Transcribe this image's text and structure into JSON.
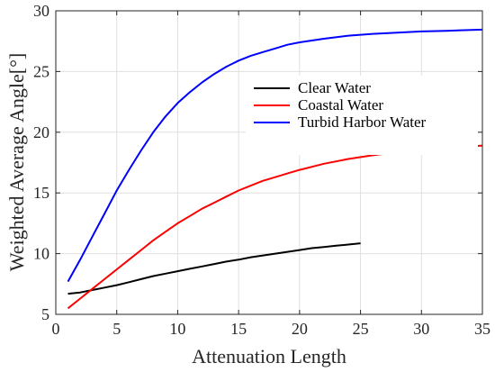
{
  "chart_data": {
    "type": "line",
    "xlabel": "Attenuation Length",
    "ylabel": "Weighted Average Angle[°]",
    "xlim": [
      0,
      35
    ],
    "ylim": [
      5,
      30
    ],
    "xticks": [
      0,
      5,
      10,
      15,
      20,
      25,
      30,
      35
    ],
    "yticks": [
      5,
      10,
      15,
      20,
      25,
      30
    ],
    "grid": true,
    "legend_position": "top-right",
    "series": [
      {
        "name": "Clear Water",
        "color": "#000000",
        "x": [
          1,
          2,
          3,
          4,
          5,
          6,
          7,
          8,
          9,
          10,
          11,
          12,
          13,
          14,
          15,
          16,
          17,
          18,
          19,
          20,
          21,
          22,
          23,
          24,
          25
        ],
        "y": [
          6.7,
          6.8,
          7.0,
          7.2,
          7.4,
          7.65,
          7.9,
          8.15,
          8.35,
          8.55,
          8.75,
          8.95,
          9.15,
          9.35,
          9.5,
          9.7,
          9.85,
          10.0,
          10.15,
          10.3,
          10.45,
          10.55,
          10.65,
          10.75,
          10.85
        ]
      },
      {
        "name": "Coastal Water",
        "color": "#ff0000",
        "x": [
          1,
          2,
          3,
          4,
          5,
          6,
          7,
          8,
          9,
          10,
          11,
          12,
          13,
          14,
          15,
          16,
          17,
          18,
          19,
          20,
          22,
          24,
          26,
          28,
          30,
          32,
          35
        ],
        "y": [
          5.5,
          6.3,
          7.1,
          7.9,
          8.7,
          9.5,
          10.3,
          11.1,
          11.8,
          12.5,
          13.1,
          13.7,
          14.2,
          14.7,
          15.2,
          15.6,
          16.0,
          16.3,
          16.6,
          16.9,
          17.4,
          17.8,
          18.1,
          18.35,
          18.55,
          18.7,
          18.9
        ]
      },
      {
        "name": "Turbid Harbor Water",
        "color": "#0000ff",
        "x": [
          1,
          2,
          3,
          4,
          5,
          6,
          7,
          8,
          9,
          10,
          11,
          12,
          13,
          14,
          15,
          16,
          17,
          18,
          19,
          20,
          22,
          24,
          26,
          28,
          30,
          32,
          35
        ],
        "y": [
          7.7,
          9.5,
          11.4,
          13.3,
          15.2,
          16.9,
          18.5,
          20.0,
          21.3,
          22.4,
          23.3,
          24.1,
          24.8,
          25.4,
          25.9,
          26.3,
          26.6,
          26.9,
          27.2,
          27.4,
          27.7,
          27.95,
          28.1,
          28.2,
          28.3,
          28.35,
          28.45
        ]
      }
    ]
  }
}
